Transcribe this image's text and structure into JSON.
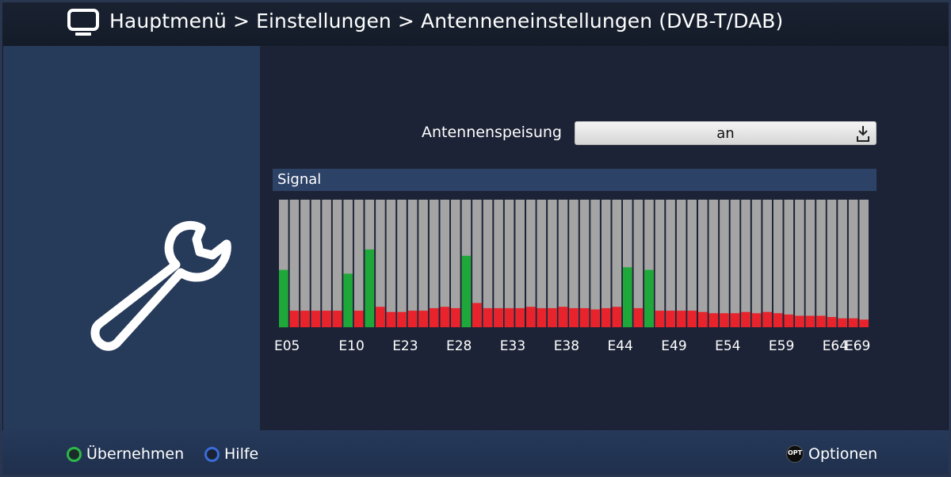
{
  "header": {
    "title": "Hauptmenü > Einstellungen > Antenneneinstellungen (DVB-T/DAB)",
    "icon": "tv-icon"
  },
  "sidebar": {
    "icon": "wrench-icon"
  },
  "settings": {
    "antenna_power_label": "Antennenspeisung",
    "antenna_power_value": "an"
  },
  "signal": {
    "title": "Signal"
  },
  "colors": {
    "green": "#1fa83a",
    "red": "#e8232b",
    "bg_bar": "#a4a4a4"
  },
  "chart_data": {
    "type": "bar",
    "title": "Signal",
    "bar_count": 55,
    "values": [
      45,
      13,
      13,
      13,
      13,
      13,
      42,
      13,
      61,
      16,
      12,
      12,
      13,
      13,
      15,
      16,
      15,
      56,
      19,
      15,
      15,
      15,
      15,
      16,
      15,
      15,
      16,
      15,
      15,
      14,
      15,
      16,
      47,
      15,
      45,
      13,
      13,
      13,
      13,
      12,
      11,
      11,
      11,
      12,
      11,
      12,
      11,
      10,
      9,
      9,
      9,
      8,
      7,
      7,
      6
    ],
    "colors": [
      "green",
      "red",
      "red",
      "red",
      "red",
      "red",
      "green",
      "red",
      "green",
      "red",
      "red",
      "red",
      "red",
      "red",
      "red",
      "red",
      "red",
      "green",
      "red",
      "red",
      "red",
      "red",
      "red",
      "red",
      "red",
      "red",
      "red",
      "red",
      "red",
      "red",
      "red",
      "red",
      "green",
      "red",
      "green",
      "red",
      "red",
      "red",
      "red",
      "red",
      "red",
      "red",
      "red",
      "red",
      "red",
      "red",
      "red",
      "red",
      "red",
      "red",
      "red",
      "red",
      "red",
      "red",
      "red"
    ],
    "ylim": [
      0,
      100
    ],
    "x_tick_labels": [
      {
        "label": "E05",
        "index": 0
      },
      {
        "label": "E10",
        "index": 6
      },
      {
        "label": "E23",
        "index": 11
      },
      {
        "label": "E28",
        "index": 16
      },
      {
        "label": "E33",
        "index": 21
      },
      {
        "label": "E38",
        "index": 26
      },
      {
        "label": "E44",
        "index": 31
      },
      {
        "label": "E49",
        "index": 36
      },
      {
        "label": "E54",
        "index": 41
      },
      {
        "label": "E59",
        "index": 46
      },
      {
        "label": "E64",
        "index": 51
      },
      {
        "label": "E69",
        "index": 57
      }
    ]
  },
  "footer": {
    "accept_label": "Übernehmen",
    "help_label": "Hilfe",
    "opt_badge": "OPT",
    "options_label": "Optionen"
  }
}
